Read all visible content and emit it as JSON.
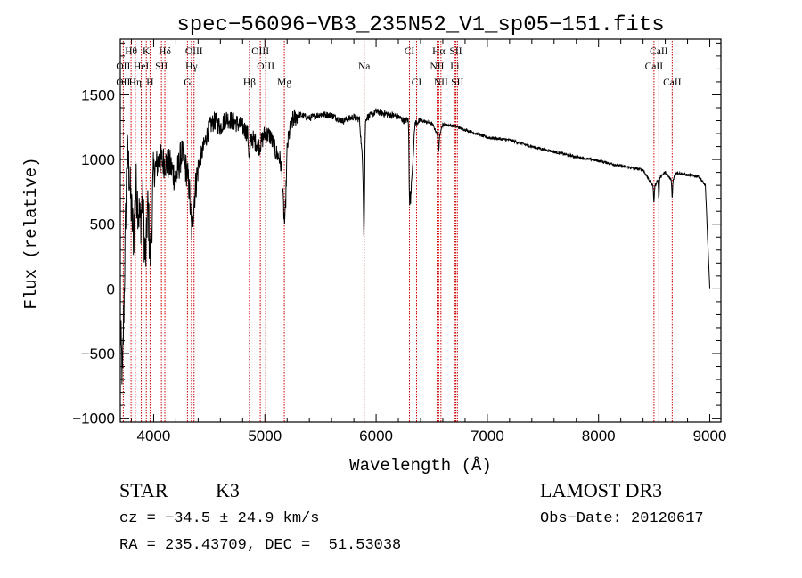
{
  "chart_data": {
    "type": "line",
    "title": "spec−56096−VB3_235N52_V1_sp05−151.fits",
    "xlabel": "Wavelength (Å)",
    "ylabel": "Flux (relative)",
    "xlim": [
      3700,
      9100
    ],
    "ylim": [
      -1030,
      1930
    ],
    "x_ticks": [
      4000,
      5000,
      6000,
      7000,
      8000,
      9000
    ],
    "x_tick_labels": [
      "4000",
      "5000",
      "6000",
      "7000",
      "8000",
      "9000"
    ],
    "y_ticks": [
      -1000,
      -500,
      0,
      500,
      1000,
      1500
    ],
    "y_tick_labels": [
      "−1000",
      "−500",
      "0",
      "500",
      "1000",
      "1500"
    ],
    "series": [
      {
        "name": "flux",
        "x": [
          3700,
          3720,
          3740,
          3760,
          3780,
          3800,
          3820,
          3840,
          3860,
          3880,
          3900,
          3920,
          3940,
          3960,
          3980,
          4000,
          4050,
          4100,
          4150,
          4200,
          4250,
          4300,
          4350,
          4400,
          4450,
          4500,
          4550,
          4600,
          4650,
          4700,
          4750,
          4800,
          4850,
          4900,
          4950,
          5000,
          5050,
          5100,
          5150,
          5180,
          5200,
          5250,
          5300,
          5400,
          5500,
          5600,
          5700,
          5800,
          5850,
          5890,
          5900,
          5950,
          6000,
          6100,
          6200,
          6250,
          6300,
          6310,
          6350,
          6400,
          6500,
          6562,
          6600,
          6700,
          6800,
          6900,
          7000,
          7200,
          7400,
          7600,
          7800,
          8000,
          8200,
          8400,
          8498,
          8542,
          8600,
          8662,
          8700,
          8800,
          8900,
          8960,
          8980,
          9000
        ],
        "y": [
          -300,
          -700,
          200,
          1050,
          900,
          600,
          400,
          800,
          650,
          500,
          700,
          350,
          800,
          600,
          500,
          900,
          1000,
          980,
          950,
          850,
          1050,
          900,
          600,
          950,
          1100,
          1250,
          1300,
          1250,
          1320,
          1300,
          1280,
          1250,
          1200,
          1150,
          1100,
          1200,
          1180,
          1050,
          1000,
          700,
          1150,
          1300,
          1350,
          1320,
          1350,
          1340,
          1300,
          1330,
          1310,
          850,
          1320,
          1340,
          1370,
          1350,
          1330,
          1300,
          1310,
          700,
          1280,
          1300,
          1280,
          1180,
          1270,
          1260,
          1230,
          1200,
          1170,
          1150,
          1100,
          1060,
          1020,
          990,
          950,
          920,
          780,
          860,
          900,
          830,
          900,
          880,
          870,
          800,
          400,
          0
        ]
      }
    ],
    "line_ids": {
      "row1": [
        {
          "label": "Hθ",
          "x": 3797
        },
        {
          "label": "K",
          "x": 3934
        },
        {
          "label": "Hδ",
          "x": 4101
        },
        {
          "label": "OIII",
          "x": 4363
        },
        {
          "label": "OIII",
          "x": 4959
        },
        {
          "label": "CI",
          "x": 6300
        },
        {
          "label": "Hα",
          "x": 6563
        },
        {
          "label": "SII",
          "x": 6717
        },
        {
          "label": "CaII",
          "x": 8542
        }
      ],
      "row2": [
        {
          "label": "OII",
          "x": 3727
        },
        {
          "label": "HeI",
          "x": 3889
        },
        {
          "label": "SII",
          "x": 4070
        },
        {
          "label": "Hγ",
          "x": 4340
        },
        {
          "label": "OIII",
          "x": 5007
        },
        {
          "label": "Na",
          "x": 5893
        },
        {
          "label": "NII",
          "x": 6548
        },
        {
          "label": "Li",
          "x": 6707
        },
        {
          "label": "CaII",
          "x": 8498
        }
      ],
      "row3": [
        {
          "label": "OII",
          "x": 3727
        },
        {
          "label": "Hη",
          "x": 3835
        },
        {
          "label": "H",
          "x": 3968
        },
        {
          "label": "G",
          "x": 4304
        },
        {
          "label": "Hβ",
          "x": 4861
        },
        {
          "label": "Mg",
          "x": 5175
        },
        {
          "label": "CI",
          "x": 6364
        },
        {
          "label": "NII",
          "x": 6583
        },
        {
          "label": "SII",
          "x": 6731
        },
        {
          "label": "CaII",
          "x": 8662
        }
      ]
    },
    "line_color": "#cc0000"
  },
  "info": {
    "object_class": "STAR",
    "subclass": "K3",
    "survey": "LAMOST DR3",
    "cz": "cz = −34.5 ± 24.9 km/s",
    "obs_date": "Obs−Date: 20120617",
    "coords": "RA = 235.43709, DEC =  51.53038"
  }
}
